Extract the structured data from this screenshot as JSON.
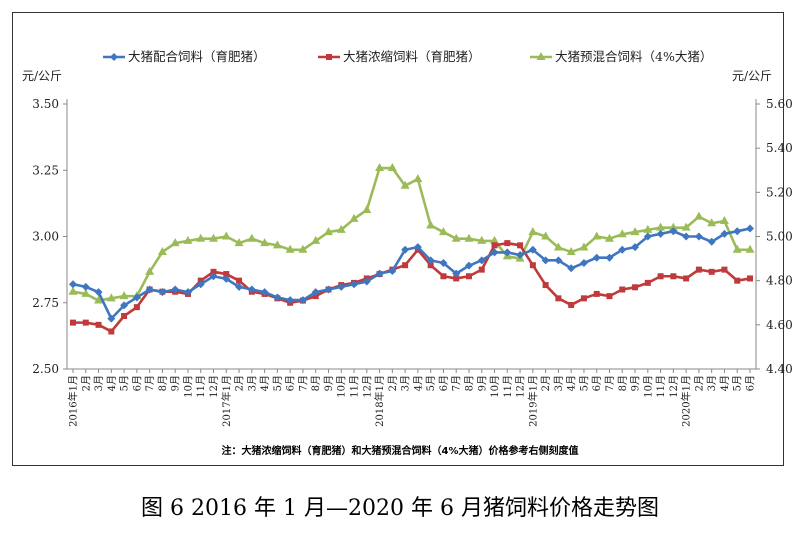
{
  "chart_data": {
    "type": "line",
    "title": "图 6   2016 年 1 月—2020 年 6 月猪饲料价格走势图",
    "note": "注：大猪浓缩饲料（育肥猪）和大猪预混合饲料（4%大猪）价格参考右侧刻度值",
    "ylabel_left": "元/公斤",
    "ylabel_right": "元/公斤",
    "ylim_left": [
      2.5,
      3.5
    ],
    "yticks_left": [
      "2.50",
      "2.75",
      "3.00",
      "3.25",
      "3.50"
    ],
    "ylim_right": [
      4.4,
      5.6
    ],
    "yticks_right": [
      "4.40",
      "4.60",
      "4.80",
      "5.00",
      "5.20",
      "5.40",
      "5.60"
    ],
    "legend_position": "top",
    "x": [
      "2016年1月",
      "2月",
      "3月",
      "4月",
      "5月",
      "6月",
      "7月",
      "8月",
      "9月",
      "10月",
      "11月",
      "12月",
      "2017年1月",
      "2月",
      "3月",
      "4月",
      "5月",
      "6月",
      "7月",
      "8月",
      "9月",
      "10月",
      "11月",
      "12月",
      "2018年1月",
      "2月",
      "3月",
      "4月",
      "5月",
      "6月",
      "7月",
      "8月",
      "9月",
      "10月",
      "11月",
      "12月",
      "2019年1月",
      "2月",
      "3月",
      "4月",
      "5月",
      "6月",
      "7月",
      "8月",
      "9月",
      "10月",
      "11月",
      "12月",
      "2020年1月",
      "2月",
      "3月",
      "4月",
      "5月",
      "6月"
    ],
    "series": [
      {
        "name": "大猪配合饲料（育肥猪）",
        "axis": "left",
        "color": "#3f76c0",
        "marker": "diamond",
        "values": [
          2.82,
          2.81,
          2.79,
          2.69,
          2.74,
          2.77,
          2.8,
          2.79,
          2.8,
          2.79,
          2.82,
          2.85,
          2.84,
          2.81,
          2.8,
          2.79,
          2.77,
          2.76,
          2.76,
          2.79,
          2.8,
          2.81,
          2.82,
          2.83,
          2.86,
          2.87,
          2.95,
          2.96,
          2.91,
          2.9,
          2.86,
          2.89,
          2.91,
          2.94,
          2.94,
          2.93,
          2.95,
          2.91,
          2.91,
          2.88,
          2.9,
          2.92,
          2.92,
          2.95,
          2.96,
          3.0,
          3.01,
          3.02,
          3.0,
          3.0,
          2.98,
          3.01,
          3.02,
          3.03
        ]
      },
      {
        "name": "大猪浓缩饲料（育肥猪）",
        "axis": "right",
        "color": "#c0393b",
        "marker": "square",
        "values": [
          4.61,
          4.61,
          4.6,
          4.57,
          4.64,
          4.68,
          4.76,
          4.75,
          4.75,
          4.74,
          4.8,
          4.84,
          4.83,
          4.8,
          4.75,
          4.74,
          4.72,
          4.7,
          4.71,
          4.73,
          4.76,
          4.78,
          4.79,
          4.81,
          4.83,
          4.85,
          4.87,
          4.94,
          4.87,
          4.82,
          4.81,
          4.82,
          4.85,
          4.96,
          4.97,
          4.96,
          4.87,
          4.78,
          4.72,
          4.69,
          4.72,
          4.74,
          4.73,
          4.76,
          4.77,
          4.79,
          4.82,
          4.82,
          4.81,
          4.85,
          4.84,
          4.85,
          4.8,
          4.81
        ]
      },
      {
        "name": "大猪预混合饲料（4%大猪）",
        "axis": "right",
        "color": "#9bbb59",
        "marker": "triangle",
        "values": [
          4.75,
          4.74,
          4.71,
          4.72,
          4.73,
          4.73,
          4.84,
          4.93,
          4.97,
          4.98,
          4.99,
          4.99,
          5.0,
          4.97,
          4.99,
          4.97,
          4.96,
          4.94,
          4.94,
          4.98,
          5.02,
          5.03,
          5.08,
          5.12,
          5.31,
          5.31,
          5.23,
          5.26,
          5.05,
          5.02,
          4.99,
          4.99,
          4.98,
          4.98,
          4.91,
          4.9,
          5.02,
          5.0,
          4.95,
          4.93,
          4.95,
          5.0,
          4.99,
          5.01,
          5.02,
          5.03,
          5.04,
          5.04,
          5.04,
          5.09,
          5.06,
          5.07,
          4.94,
          4.94
        ]
      }
    ]
  }
}
